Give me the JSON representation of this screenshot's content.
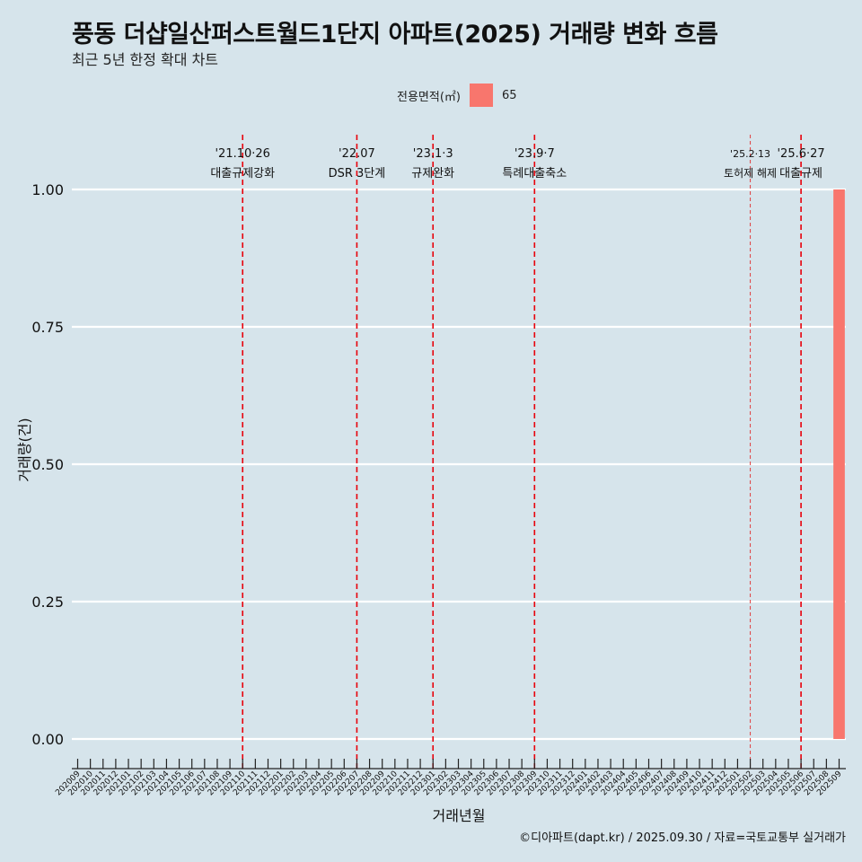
{
  "title": "풍동 더샵일산퍼스트월드1단지 아파트(2025) 거래량 변화 흐름",
  "subtitle": "최근 5년 한정 확대 차트",
  "caption": "©디아파트(dapt.kr) / 2025.09.30 / 자료=국토교통부 실거래가",
  "legend": {
    "title": "전용면적(㎡)",
    "items": [
      {
        "label": "65",
        "color": "#f8766d"
      }
    ]
  },
  "chart_data": {
    "type": "bar",
    "title": "풍동 더샵일산퍼스트월드1단지 아파트(2025) 거래량 변화 흐름",
    "xlabel": "거래년월",
    "ylabel": "거래량(건)",
    "ylim": [
      0,
      1
    ],
    "yticks": [
      "0.00",
      "0.25",
      "0.50",
      "0.75",
      "1.00"
    ],
    "categories": [
      "202009",
      "202010",
      "202011",
      "202012",
      "202101",
      "202102",
      "202103",
      "202104",
      "202105",
      "202106",
      "202107",
      "202108",
      "202109",
      "202110",
      "202111",
      "202112",
      "202201",
      "202202",
      "202203",
      "202204",
      "202205",
      "202206",
      "202207",
      "202208",
      "202209",
      "202210",
      "202211",
      "202212",
      "202301",
      "202302",
      "202303",
      "202304",
      "202305",
      "202306",
      "202307",
      "202308",
      "202309",
      "202310",
      "202311",
      "202312",
      "202401",
      "202402",
      "202403",
      "202404",
      "202405",
      "202406",
      "202407",
      "202408",
      "202409",
      "202410",
      "202411",
      "202412",
      "202501",
      "202502",
      "202503",
      "202504",
      "202505",
      "202506",
      "202507",
      "202508",
      "202509"
    ],
    "series": [
      {
        "name": "65",
        "color": "#f8766d",
        "values": [
          0,
          0,
          0,
          0,
          0,
          0,
          0,
          0,
          0,
          0,
          0,
          0,
          0,
          0,
          0,
          0,
          0,
          0,
          0,
          0,
          0,
          0,
          0,
          0,
          0,
          0,
          0,
          0,
          0,
          0,
          0,
          0,
          0,
          0,
          0,
          0,
          0,
          0,
          0,
          0,
          0,
          0,
          0,
          0,
          0,
          0,
          0,
          0,
          0,
          0,
          0,
          0,
          0,
          0,
          0,
          0,
          0,
          0,
          0,
          0,
          1
        ]
      }
    ],
    "annotations": [
      {
        "category": "202110",
        "date": "'21.10·26",
        "label": "대출규제강화",
        "style": "dashed"
      },
      {
        "category": "202207",
        "date": "'22.07",
        "label": "DSR 3단계",
        "style": "dashed"
      },
      {
        "category": "202301",
        "date": "'23.1·3",
        "label": "규제완화",
        "style": "dashed"
      },
      {
        "category": "202309",
        "date": "'23.9·7",
        "label": "특례대출축소",
        "style": "dashed"
      },
      {
        "category": "202502",
        "date": "'25.2·13",
        "label": "토허제 해제",
        "style": "dotted"
      },
      {
        "category": "202506",
        "date": "'25.6·27",
        "label": "대출규제",
        "style": "dashed"
      }
    ]
  }
}
